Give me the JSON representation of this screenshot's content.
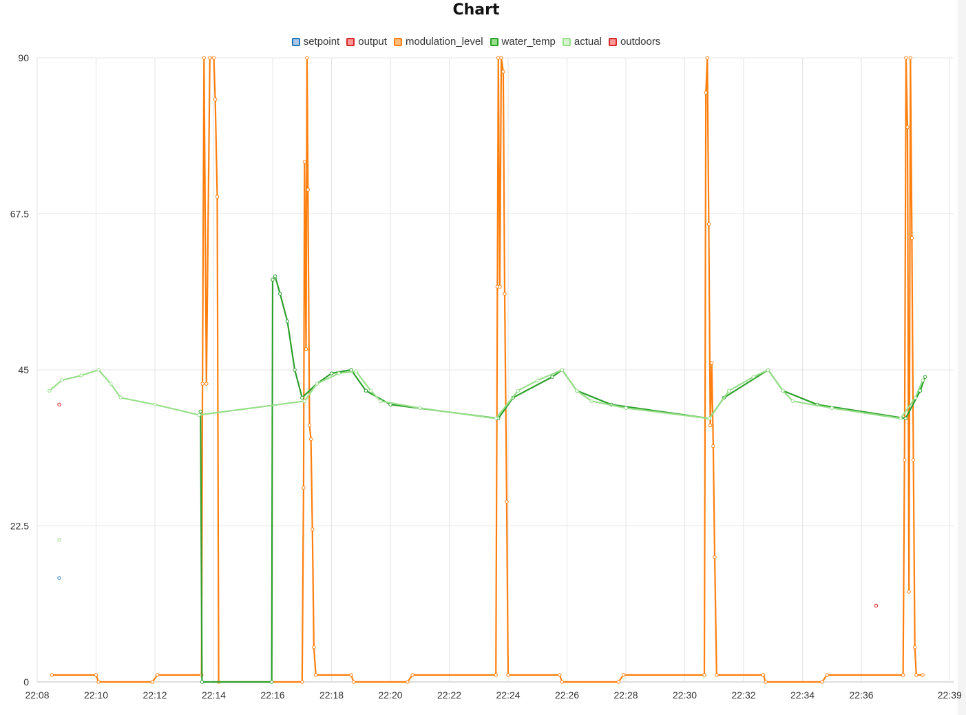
{
  "chart_data": {
    "type": "line",
    "title": "Chart",
    "ylim": [
      0,
      90
    ],
    "yticks": [
      "0",
      "22.5",
      "45",
      "67.5",
      "90"
    ],
    "xlim": [
      "22:08",
      "22:39"
    ],
    "xticks": [
      "22:08",
      "22:10",
      "22:12",
      "22:14",
      "22:16",
      "22:18",
      "22:20",
      "22:22",
      "22:24",
      "22:26",
      "22:28",
      "22:30",
      "22:32",
      "22:34",
      "22:36",
      "22:39"
    ],
    "grid": true,
    "legend_position": "top-center",
    "series": [
      {
        "name": "setpoint",
        "color": "#1f77b4",
        "fill": "#aec7e8",
        "points": [
          [
            "22:08:45",
            15
          ]
        ]
      },
      {
        "name": "output",
        "color": "#d62728",
        "fill": "#ff9896",
        "points": [
          [
            "22:08:45",
            40
          ]
        ]
      },
      {
        "name": "modulation_level",
        "color": "#ff7f0e",
        "fill": "#ffbb78",
        "points": [
          [
            "22:08:30",
            1
          ],
          [
            "22:10:00",
            1
          ],
          [
            "22:10:05",
            0
          ],
          [
            "22:11:55",
            0
          ],
          [
            "22:12:05",
            1
          ],
          [
            "22:13:35",
            1
          ],
          [
            "22:13:37",
            43
          ],
          [
            "22:13:40",
            90
          ],
          [
            "22:13:45",
            43
          ],
          [
            "22:13:52",
            90
          ],
          [
            "22:14:00",
            90
          ],
          [
            "22:14:03",
            84
          ],
          [
            "22:14:07",
            70
          ],
          [
            "22:14:10",
            0
          ],
          [
            "22:17:00",
            0
          ],
          [
            "22:17:03",
            28
          ],
          [
            "22:17:05",
            75
          ],
          [
            "22:17:08",
            48
          ],
          [
            "22:17:10",
            90
          ],
          [
            "22:17:12",
            71
          ],
          [
            "22:17:15",
            37
          ],
          [
            "22:17:18",
            35
          ],
          [
            "22:17:21",
            22
          ],
          [
            "22:17:24",
            5
          ],
          [
            "22:17:28",
            1
          ],
          [
            "22:18:40",
            1
          ],
          [
            "22:18:45",
            0
          ],
          [
            "22:20:35",
            0
          ],
          [
            "22:20:45",
            1
          ],
          [
            "22:23:35",
            1
          ],
          [
            "22:23:38",
            57
          ],
          [
            "22:23:40",
            90
          ],
          [
            "22:23:43",
            57
          ],
          [
            "22:23:46",
            90
          ],
          [
            "22:23:50",
            88
          ],
          [
            "22:23:53",
            56
          ],
          [
            "22:23:57",
            26
          ],
          [
            "22:24:00",
            1
          ],
          [
            "22:25:45",
            1
          ],
          [
            "22:25:50",
            0
          ],
          [
            "22:27:45",
            0
          ],
          [
            "22:27:55",
            1
          ],
          [
            "22:30:40",
            1
          ],
          [
            "22:30:43",
            85
          ],
          [
            "22:30:46",
            90
          ],
          [
            "22:30:49",
            66
          ],
          [
            "22:30:52",
            37
          ],
          [
            "22:30:55",
            46
          ],
          [
            "22:30:58",
            34
          ],
          [
            "22:31:01",
            18
          ],
          [
            "22:31:05",
            1
          ],
          [
            "22:32:40",
            1
          ],
          [
            "22:32:45",
            0
          ],
          [
            "22:34:40",
            0
          ],
          [
            "22:34:50",
            1
          ],
          [
            "22:37:25",
            1
          ],
          [
            "22:37:28",
            32
          ],
          [
            "22:37:31",
            90
          ],
          [
            "22:37:34",
            80
          ],
          [
            "22:37:37",
            13
          ],
          [
            "22:37:40",
            90
          ],
          [
            "22:37:43",
            64
          ],
          [
            "22:37:46",
            32
          ],
          [
            "22:37:49",
            5
          ],
          [
            "22:37:52",
            1
          ],
          [
            "22:38:05",
            1
          ]
        ]
      },
      {
        "name": "water_temp",
        "color": "#2ca02c",
        "fill": "#98df8a",
        "points": [
          [
            "22:13:33",
            39
          ],
          [
            "22:13:36",
            0
          ],
          [
            "22:15:58",
            0
          ],
          [
            "22:16:00",
            58
          ],
          [
            "22:16:05",
            58.5
          ],
          [
            "22:16:15",
            56
          ],
          [
            "22:16:30",
            52
          ],
          [
            "22:16:45",
            45
          ],
          [
            "22:17:00",
            41
          ],
          [
            "22:17:30",
            43
          ],
          [
            "22:18:00",
            44.5
          ],
          [
            "22:18:40",
            45
          ],
          [
            "22:19:10",
            42
          ],
          [
            "22:20:00",
            40
          ],
          [
            "22:23:40",
            38
          ],
          [
            "22:24:10",
            41
          ],
          [
            "22:25:30",
            44
          ],
          [
            "22:25:50",
            45
          ],
          [
            "22:26:20",
            42
          ],
          [
            "22:27:30",
            40
          ],
          [
            "22:30:50",
            38
          ],
          [
            "22:31:20",
            41
          ],
          [
            "22:32:50",
            45
          ],
          [
            "22:33:20",
            42
          ],
          [
            "22:34:30",
            40
          ],
          [
            "22:37:30",
            38
          ],
          [
            "22:38:00",
            42
          ],
          [
            "22:38:10",
            44
          ]
        ]
      },
      {
        "name": "actual",
        "color": "#98df8a",
        "fill": "#d4f5cd",
        "points": [
          [
            "22:08:25",
            42
          ],
          [
            "22:08:50",
            43.5
          ],
          [
            "22:09:30",
            44.2
          ],
          [
            "22:10:05",
            45
          ],
          [
            "22:10:30",
            43
          ],
          [
            "22:10:50",
            41
          ],
          [
            "22:12:00",
            40
          ],
          [
            "22:13:30",
            38.5
          ],
          [
            "22:17:05",
            40.5
          ],
          [
            "22:17:30",
            43
          ],
          [
            "22:18:15",
            44.5
          ],
          [
            "22:18:50",
            44.8
          ],
          [
            "22:19:20",
            42
          ],
          [
            "22:19:40",
            40.5
          ],
          [
            "22:21:00",
            39.5
          ],
          [
            "22:23:35",
            38
          ],
          [
            "22:24:20",
            42
          ],
          [
            "22:25:00",
            43.5
          ],
          [
            "22:25:50",
            45
          ],
          [
            "22:26:20",
            42
          ],
          [
            "22:26:50",
            40.5
          ],
          [
            "22:28:00",
            39.5
          ],
          [
            "22:30:50",
            38
          ],
          [
            "22:31:30",
            42
          ],
          [
            "22:32:20",
            44
          ],
          [
            "22:32:50",
            45
          ],
          [
            "22:33:20",
            42
          ],
          [
            "22:33:40",
            40.5
          ],
          [
            "22:35:00",
            39.5
          ],
          [
            "22:37:20",
            38
          ],
          [
            "22:37:50",
            41
          ],
          [
            "22:38:05",
            43.5
          ],
          [
            "22:08:45",
            20.5
          ]
        ]
      },
      {
        "name": "outdoors",
        "color": "#d62728",
        "fill": "#ff9896",
        "points": [
          [
            "22:36:30",
            11
          ]
        ]
      }
    ]
  }
}
